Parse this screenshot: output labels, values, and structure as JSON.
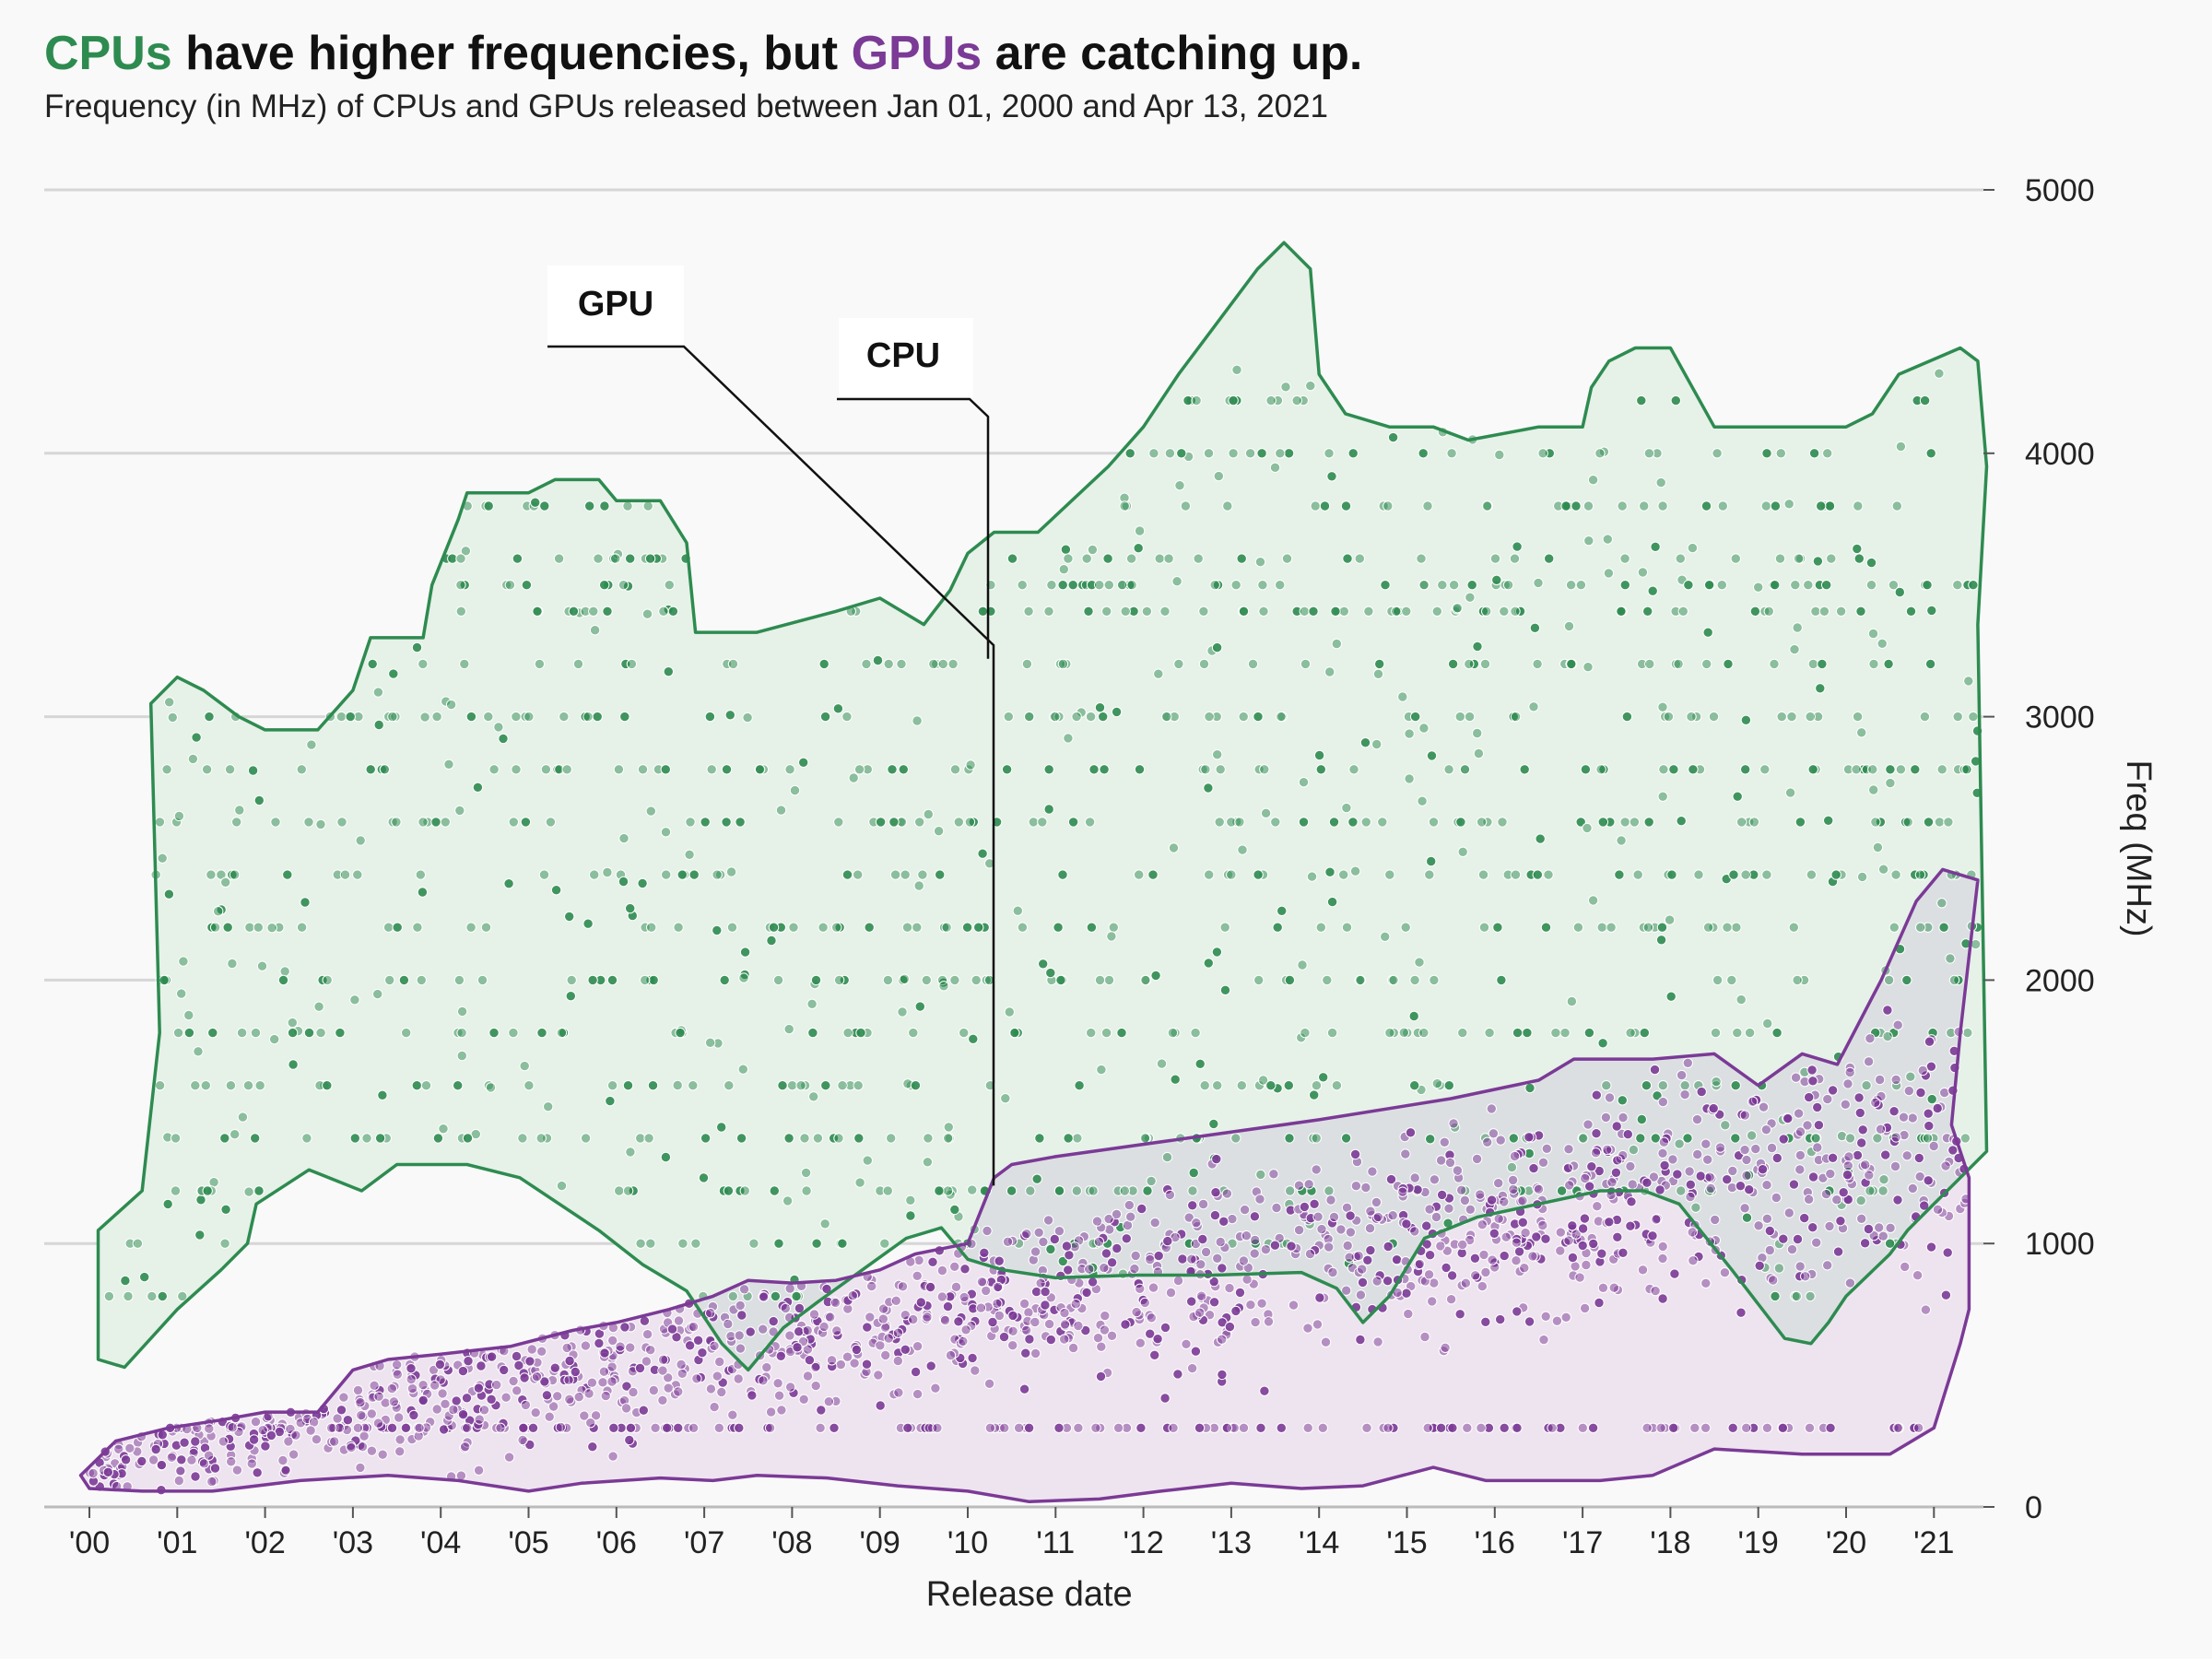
{
  "title": {
    "cpu_word": "CPUs",
    "middle": " have higher frequencies, but ",
    "gpu_word": "GPUs",
    "end": " are catching up."
  },
  "subtitle": "Frequency (in MHz) of CPUs and GPUs released between Jan 01, 2000 and Apr 13, 2021",
  "colors": {
    "cpu": "#2e8b50",
    "gpu": "#7b3a96",
    "cpu_fill": "#e6f1e8",
    "gpu_fill": "#eee4ef",
    "overlap_fill": "#dcdfe2",
    "grid": "#d6d6d6"
  },
  "chart_data": {
    "type": "scatter",
    "title": "CPUs have higher frequencies, but GPUs are catching up.",
    "subtitle": "Frequency (in MHz) of CPUs and GPUs released between Jan 01, 2000 and Apr 13, 2021",
    "xlabel": "Release date",
    "ylabel": "Freq (MHz)",
    "x_range": [
      "2000-01-01",
      "2021-12-31"
    ],
    "ylim": [
      0,
      5000
    ],
    "yticks": [
      0,
      1000,
      2000,
      3000,
      4000,
      5000
    ],
    "xticks": [
      {
        "year": 2000,
        "label": "'00"
      },
      {
        "year": 2001,
        "label": "'01"
      },
      {
        "year": 2002,
        "label": "'02"
      },
      {
        "year": 2003,
        "label": "'03"
      },
      {
        "year": 2004,
        "label": "'04"
      },
      {
        "year": 2005,
        "label": "'05"
      },
      {
        "year": 2006,
        "label": "'06"
      },
      {
        "year": 2007,
        "label": "'07"
      },
      {
        "year": 2008,
        "label": "'08"
      },
      {
        "year": 2009,
        "label": "'09"
      },
      {
        "year": 2010,
        "label": "'10"
      },
      {
        "year": 2011,
        "label": "'11"
      },
      {
        "year": 2012,
        "label": "'12"
      },
      {
        "year": 2013,
        "label": "'13"
      },
      {
        "year": 2014,
        "label": "'14"
      },
      {
        "year": 2015,
        "label": "'15"
      },
      {
        "year": 2016,
        "label": "'16"
      },
      {
        "year": 2017,
        "label": "'17"
      },
      {
        "year": 2018,
        "label": "'18"
      },
      {
        "year": 2019,
        "label": "'19"
      },
      {
        "year": 2020,
        "label": "'20"
      },
      {
        "year": 2021,
        "label": "'21"
      }
    ],
    "grid": "horizontal",
    "y_axis_side": "right",
    "legend": "none",
    "annotations": [
      {
        "text": "GPU",
        "points_to": [
          2010.3,
          1220
        ]
      },
      {
        "text": "CPU",
        "points_to": [
          2010.3,
          3220
        ]
      }
    ],
    "series": [
      {
        "name": "CPU",
        "boundary": [
          [
            2000.1,
            1050
          ],
          [
            2000.6,
            1200
          ],
          [
            2000.8,
            1800
          ],
          [
            2000.7,
            3050
          ],
          [
            2001.0,
            3150
          ],
          [
            2001.3,
            3100
          ],
          [
            2001.7,
            3000
          ],
          [
            2002.0,
            2950
          ],
          [
            2002.6,
            2950
          ],
          [
            2003.0,
            3100
          ],
          [
            2003.2,
            3300
          ],
          [
            2003.8,
            3300
          ],
          [
            2003.9,
            3500
          ],
          [
            2004.2,
            3750
          ],
          [
            2004.3,
            3850
          ],
          [
            2005.0,
            3850
          ],
          [
            2005.3,
            3900
          ],
          [
            2005.8,
            3900
          ],
          [
            2006.0,
            3820
          ],
          [
            2006.5,
            3820
          ],
          [
            2006.8,
            3660
          ],
          [
            2006.9,
            3320
          ],
          [
            2007.6,
            3320
          ],
          [
            2008.5,
            3400
          ],
          [
            2009.0,
            3450
          ],
          [
            2009.5,
            3350
          ],
          [
            2009.8,
            3480
          ],
          [
            2010.0,
            3620
          ],
          [
            2010.3,
            3700
          ],
          [
            2010.8,
            3700
          ],
          [
            2011.6,
            3950
          ],
          [
            2012.0,
            4100
          ],
          [
            2012.4,
            4300
          ],
          [
            2013.3,
            4700
          ],
          [
            2013.6,
            4800
          ],
          [
            2013.9,
            4700
          ],
          [
            2014.0,
            4300
          ],
          [
            2014.3,
            4150
          ],
          [
            2014.8,
            4100
          ],
          [
            2015.3,
            4100
          ],
          [
            2015.7,
            4050
          ],
          [
            2016.5,
            4100
          ],
          [
            2017.0,
            4100
          ],
          [
            2017.1,
            4250
          ],
          [
            2017.3,
            4350
          ],
          [
            2017.6,
            4400
          ],
          [
            2018.0,
            4400
          ],
          [
            2018.5,
            4100
          ],
          [
            2020.0,
            4100
          ],
          [
            2020.3,
            4150
          ],
          [
            2020.6,
            4300
          ],
          [
            2021.3,
            4400
          ],
          [
            2021.5,
            4350
          ],
          [
            2021.6,
            3950
          ],
          [
            2021.5,
            3350
          ],
          [
            2021.6,
            1350
          ],
          [
            2021.3,
            1250
          ],
          [
            2021.0,
            1150
          ],
          [
            2020.7,
            1050
          ],
          [
            2020.5,
            960
          ],
          [
            2020.0,
            800
          ],
          [
            2019.8,
            700
          ],
          [
            2019.6,
            620
          ],
          [
            2019.3,
            640
          ],
          [
            2018.7,
            900
          ],
          [
            2018.1,
            1150
          ],
          [
            2017.7,
            1200
          ],
          [
            2017.2,
            1200
          ],
          [
            2016.5,
            1150
          ],
          [
            2015.8,
            1100
          ],
          [
            2015.2,
            1020
          ],
          [
            2014.8,
            800
          ],
          [
            2014.5,
            700
          ],
          [
            2014.2,
            830
          ],
          [
            2013.8,
            890
          ],
          [
            2012.8,
            880
          ],
          [
            2011.9,
            880
          ],
          [
            2011.0,
            870
          ],
          [
            2010.4,
            900
          ],
          [
            2010.0,
            940
          ],
          [
            2009.7,
            1060
          ],
          [
            2009.3,
            1020
          ],
          [
            2008.8,
            900
          ],
          [
            2008.3,
            780
          ],
          [
            2007.9,
            680
          ],
          [
            2007.5,
            520
          ],
          [
            2007.2,
            620
          ],
          [
            2006.8,
            820
          ],
          [
            2006.3,
            920
          ],
          [
            2005.8,
            1050
          ],
          [
            2004.9,
            1250
          ],
          [
            2004.3,
            1300
          ],
          [
            2003.5,
            1300
          ],
          [
            2003.1,
            1200
          ],
          [
            2002.5,
            1280
          ],
          [
            2001.9,
            1150
          ],
          [
            2001.8,
            1000
          ],
          [
            2001.5,
            900
          ],
          [
            2001.0,
            750
          ],
          [
            2000.4,
            530
          ],
          [
            2000.1,
            560
          ]
        ]
      },
      {
        "name": "GPU",
        "boundary": [
          [
            1999.9,
            120
          ],
          [
            2000.3,
            250
          ],
          [
            2000.9,
            300
          ],
          [
            2001.5,
            330
          ],
          [
            2002.0,
            360
          ],
          [
            2002.6,
            360
          ],
          [
            2003.0,
            520
          ],
          [
            2003.4,
            560
          ],
          [
            2004.0,
            580
          ],
          [
            2004.8,
            610
          ],
          [
            2005.5,
            670
          ],
          [
            2006.0,
            700
          ],
          [
            2006.6,
            750
          ],
          [
            2007.1,
            800
          ],
          [
            2007.5,
            860
          ],
          [
            2008.0,
            850
          ],
          [
            2008.5,
            860
          ],
          [
            2009.0,
            900
          ],
          [
            2009.4,
            960
          ],
          [
            2010.0,
            1000
          ],
          [
            2010.3,
            1250
          ],
          [
            2010.5,
            1300
          ],
          [
            2011.0,
            1330
          ],
          [
            2012.5,
            1400
          ],
          [
            2014.0,
            1470
          ],
          [
            2015.5,
            1550
          ],
          [
            2016.5,
            1620
          ],
          [
            2016.9,
            1700
          ],
          [
            2017.8,
            1700
          ],
          [
            2018.5,
            1720
          ],
          [
            2019.0,
            1600
          ],
          [
            2019.5,
            1720
          ],
          [
            2019.9,
            1680
          ],
          [
            2020.4,
            2000
          ],
          [
            2020.8,
            2300
          ],
          [
            2021.1,
            2420
          ],
          [
            2021.5,
            2380
          ],
          [
            2021.3,
            1800
          ],
          [
            2021.2,
            1450
          ],
          [
            2021.4,
            1250
          ],
          [
            2021.4,
            750
          ],
          [
            2021.3,
            620
          ],
          [
            2021.0,
            300
          ],
          [
            2020.5,
            200
          ],
          [
            2019.5,
            200
          ],
          [
            2018.5,
            220
          ],
          [
            2017.8,
            120
          ],
          [
            2017.2,
            100
          ],
          [
            2016.5,
            100
          ],
          [
            2015.9,
            100
          ],
          [
            2015.3,
            150
          ],
          [
            2014.5,
            80
          ],
          [
            2013.8,
            70
          ],
          [
            2013.0,
            90
          ],
          [
            2012.2,
            60
          ],
          [
            2011.5,
            30
          ],
          [
            2010.7,
            20
          ],
          [
            2010.0,
            60
          ],
          [
            2009.2,
            80
          ],
          [
            2008.4,
            110
          ],
          [
            2007.6,
            120
          ],
          [
            2007.1,
            100
          ],
          [
            2006.5,
            110
          ],
          [
            2005.6,
            90
          ],
          [
            2005.0,
            60
          ],
          [
            2004.2,
            100
          ],
          [
            2003.4,
            120
          ],
          [
            2002.4,
            100
          ],
          [
            2001.4,
            60
          ],
          [
            2000.6,
            60
          ],
          [
            2000.0,
            70
          ]
        ]
      }
    ]
  }
}
